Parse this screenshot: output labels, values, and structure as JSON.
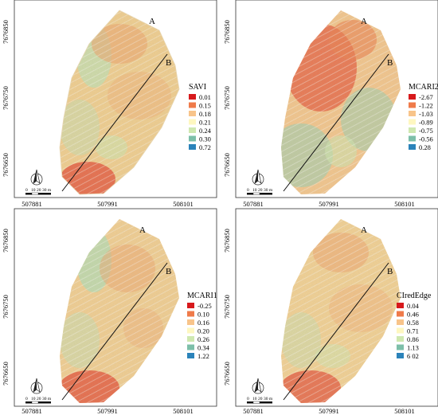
{
  "map_grid": {
    "x_ticks": [
      "507881",
      "507991",
      "508101"
    ],
    "y_ticks": [
      "7676850",
      "7676750",
      "7676650"
    ],
    "transect_points": [
      "A",
      "B"
    ],
    "scale_bar": {
      "labels": [
        "0",
        "10",
        "20",
        "30 m"
      ]
    },
    "north_arrow": "north-arrow-icon"
  },
  "panels": [
    {
      "id": "savi",
      "legend": {
        "title": "SAVI",
        "classes": [
          {
            "label": "0.01",
            "color": "#d7191c"
          },
          {
            "label": "0.15",
            "color": "#ef7b4a"
          },
          {
            "label": "0.18",
            "color": "#f8c48a"
          },
          {
            "label": "0.21",
            "color": "#fef7c0"
          },
          {
            "label": "0.24",
            "color": "#cfe8b0"
          },
          {
            "label": "0.30",
            "color": "#7dbfa9"
          },
          {
            "label": "0.72",
            "color": "#2b83ba"
          }
        ]
      }
    },
    {
      "id": "mcari2",
      "legend": {
        "title": "MCARI2",
        "classes": [
          {
            "label": "-2.67",
            "color": "#d7191c"
          },
          {
            "label": "-1.22",
            "color": "#ef7b4a"
          },
          {
            "label": "-1.03",
            "color": "#f8c48a"
          },
          {
            "label": "-0.89",
            "color": "#fef7c0"
          },
          {
            "label": "-0.75",
            "color": "#cfe8b0"
          },
          {
            "label": "-0.56",
            "color": "#7dbfa9"
          },
          {
            "label": "0.28",
            "color": "#2b83ba"
          }
        ]
      }
    },
    {
      "id": "mcari1",
      "legend": {
        "title": "MCARI1",
        "classes": [
          {
            "label": "-0.25",
            "color": "#d7191c"
          },
          {
            "label": "0.10",
            "color": "#ef7b4a"
          },
          {
            "label": "0.16",
            "color": "#f8c48a"
          },
          {
            "label": "0.20",
            "color": "#fef7c0"
          },
          {
            "label": "0.26",
            "color": "#cfe8b0"
          },
          {
            "label": "0.34",
            "color": "#7dbfa9"
          },
          {
            "label": "1.22",
            "color": "#2b83ba"
          }
        ]
      }
    },
    {
      "id": "clrededge",
      "legend": {
        "title": "CIredEdge",
        "classes": [
          {
            "label": "0.04",
            "color": "#d7191c"
          },
          {
            "label": "0.46",
            "color": "#ef7b4a"
          },
          {
            "label": "0.58",
            "color": "#f8c48a"
          },
          {
            "label": "0.71",
            "color": "#fef7c0"
          },
          {
            "label": "0.86",
            "color": "#cfe8b0"
          },
          {
            "label": "1.13",
            "color": "#7dbfa9"
          },
          {
            "label": "6 02",
            "color": "#2b83ba"
          }
        ]
      }
    }
  ]
}
